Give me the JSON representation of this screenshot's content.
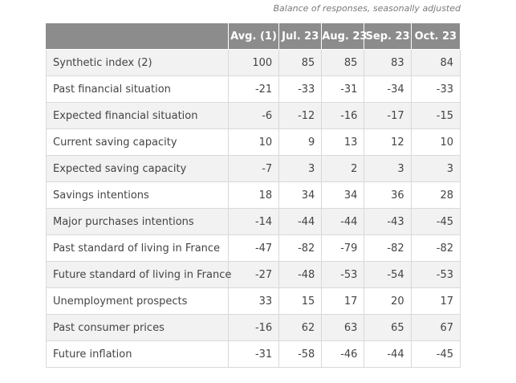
{
  "caption": "Balance of responses, seasonally adjusted",
  "table": {
    "headers": [
      "",
      "Avg. (1)",
      "Jul. 23",
      "Aug. 23",
      "Sep. 23",
      "Oct. 23"
    ],
    "rows": [
      {
        "label": "Synthetic index (2)",
        "values": [
          "100",
          "85",
          "85",
          "83",
          "84"
        ]
      },
      {
        "label": "Past financial situation",
        "values": [
          "-21",
          "-33",
          "-31",
          "-34",
          "-33"
        ]
      },
      {
        "label": "Expected financial situation",
        "values": [
          "-6",
          "-12",
          "-16",
          "-17",
          "-15"
        ]
      },
      {
        "label": "Current saving capacity",
        "values": [
          "10",
          "9",
          "13",
          "12",
          "10"
        ]
      },
      {
        "label": "Expected saving capacity",
        "values": [
          "-7",
          "3",
          "2",
          "3",
          "3"
        ]
      },
      {
        "label": "Savings intentions",
        "values": [
          "18",
          "34",
          "34",
          "36",
          "28"
        ]
      },
      {
        "label": "Major purchases intentions",
        "values": [
          "-14",
          "-44",
          "-44",
          "-43",
          "-45"
        ]
      },
      {
        "label": "Past standard of living in France",
        "values": [
          "-47",
          "-82",
          "-79",
          "-82",
          "-82"
        ]
      },
      {
        "label": "Future standard of living in France",
        "values": [
          "-27",
          "-48",
          "-53",
          "-54",
          "-53"
        ]
      },
      {
        "label": "Unemployment prospects",
        "values": [
          "33",
          "15",
          "17",
          "20",
          "17"
        ]
      },
      {
        "label": "Past consumer prices",
        "values": [
          "-16",
          "62",
          "63",
          "65",
          "67"
        ]
      },
      {
        "label": "Future inflation",
        "values": [
          "-31",
          "-58",
          "-46",
          "-44",
          "-45"
        ]
      }
    ]
  },
  "colors": {
    "header_bg": "#8c8c8c",
    "header_text": "#ffffff",
    "stripe_bg": "#f2f2f2",
    "border": "#d9d9d9"
  }
}
